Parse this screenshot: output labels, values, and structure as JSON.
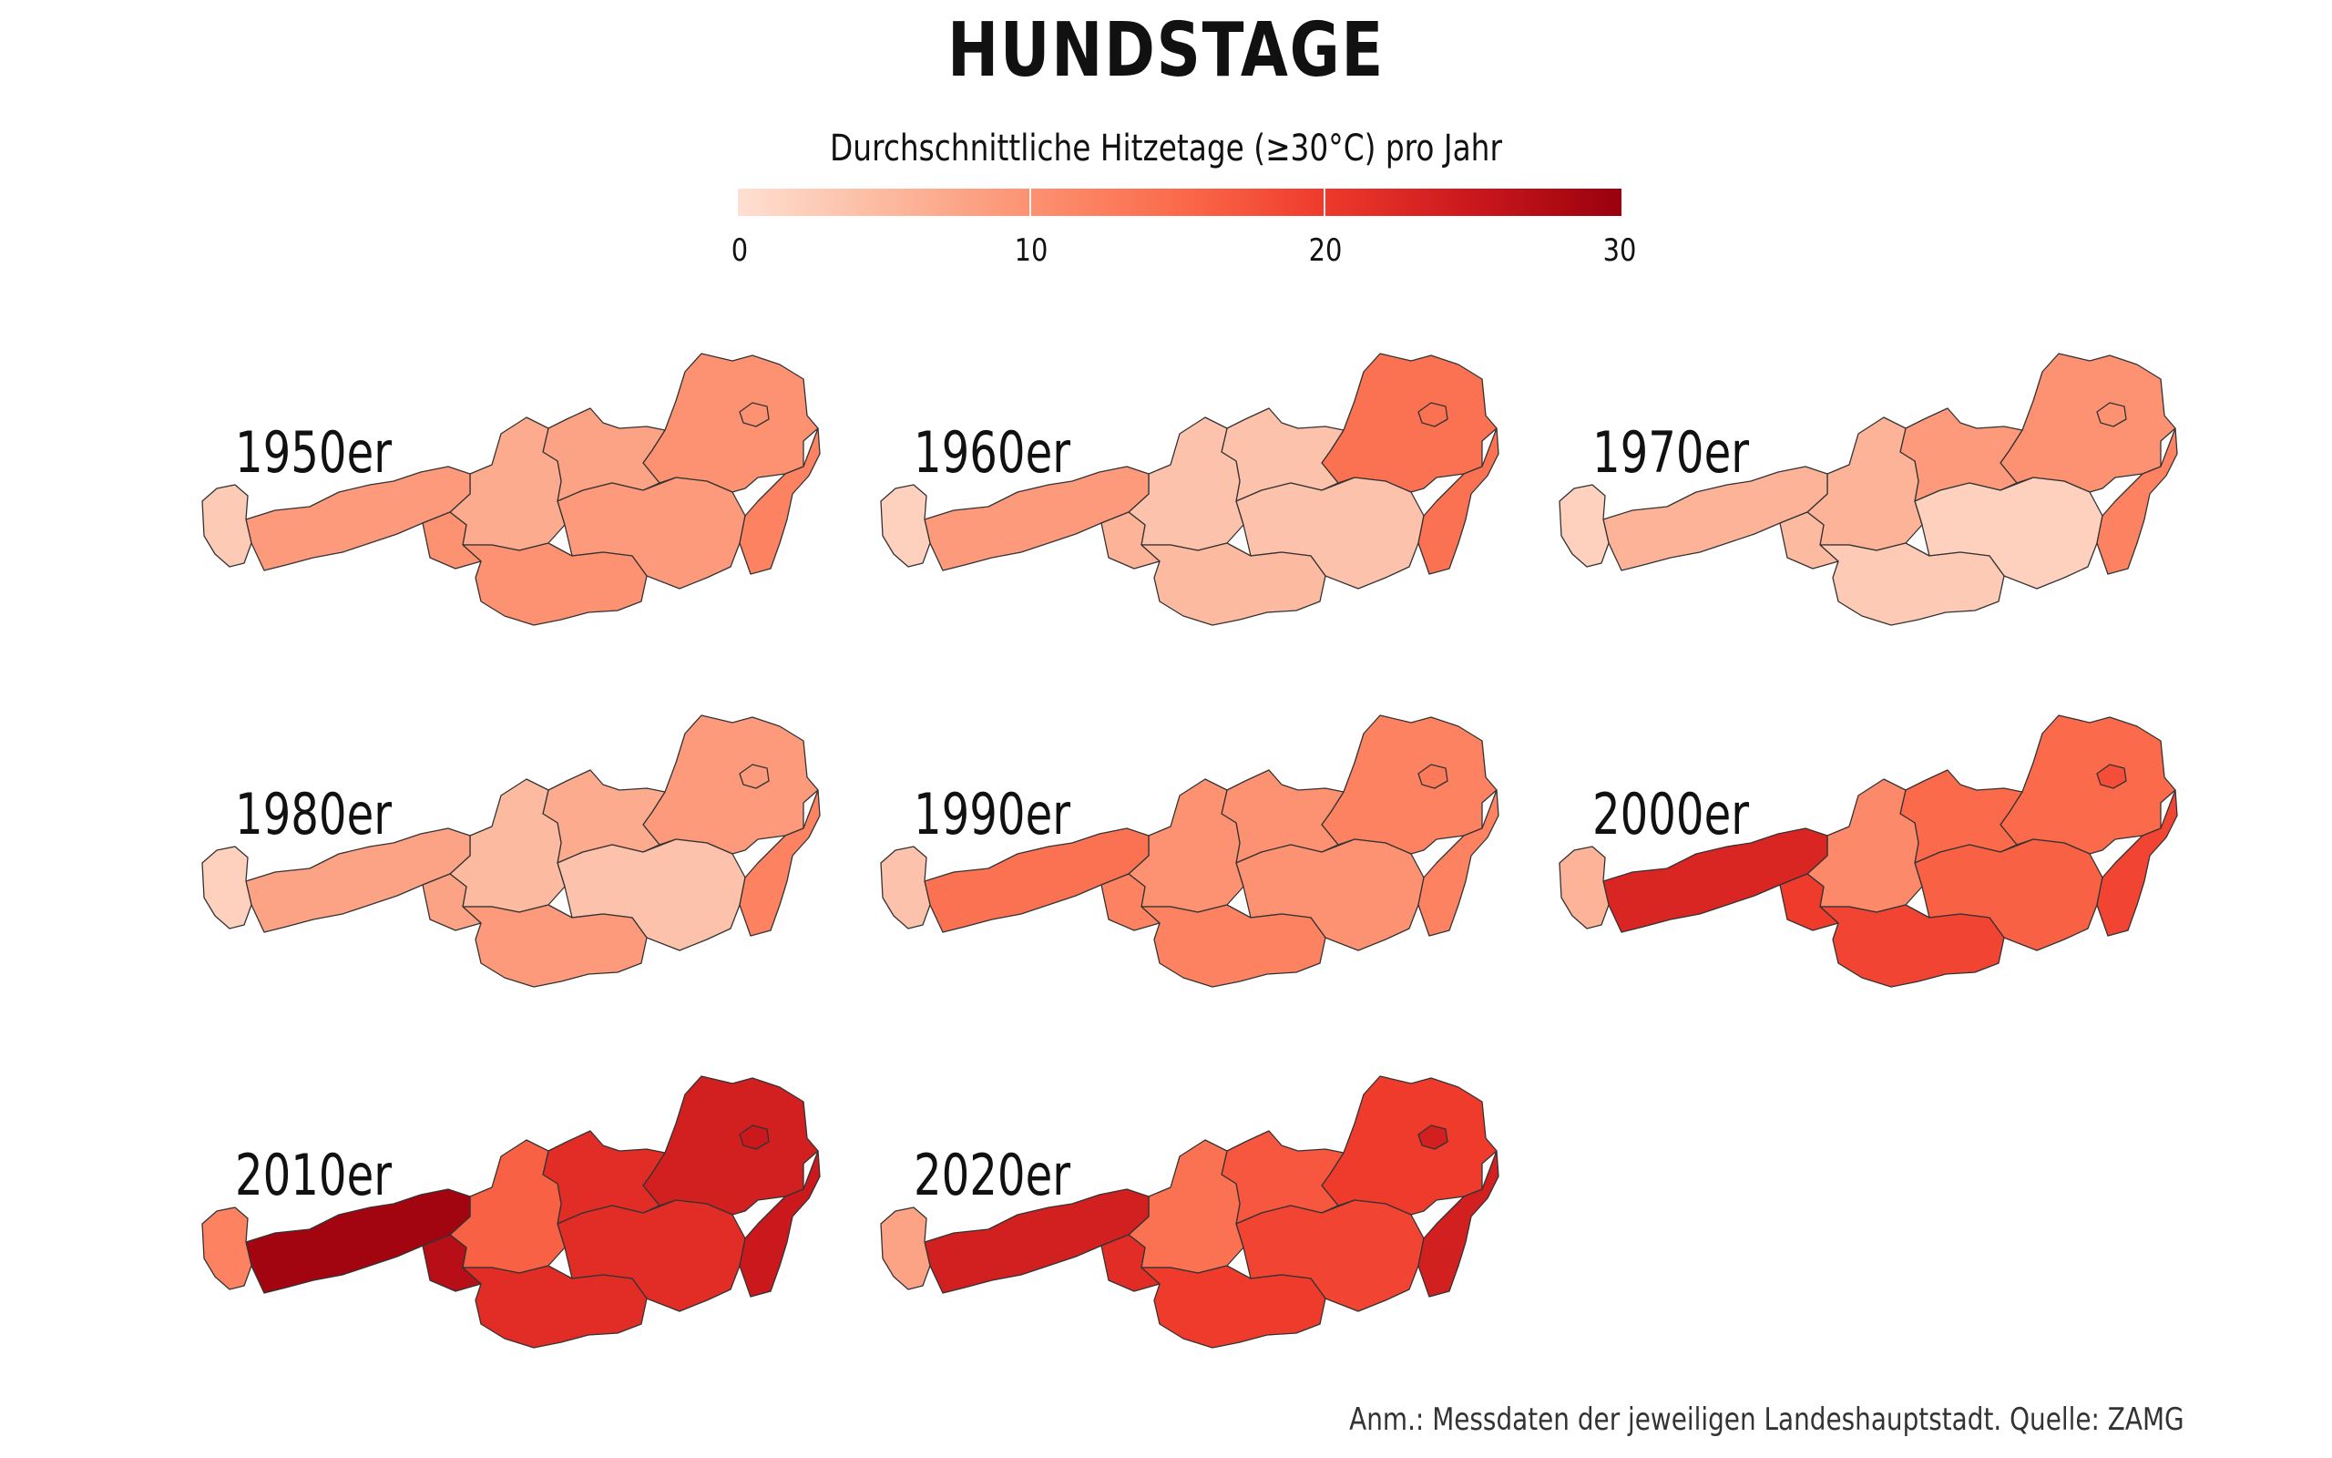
{
  "title": "HUNDSTAGE",
  "legend": {
    "title": "Durchschnittliche Hitzetage (≥30°C) pro Jahr",
    "ticks": [
      "0",
      "10",
      "20",
      "30"
    ],
    "min": 0,
    "max": 30,
    "colors": [
      "#fee0d2",
      "#fcbba1",
      "#fc9272",
      "#fb6a4a",
      "#ef3b2c",
      "#cb181d",
      "#99000d"
    ]
  },
  "footnote": "Anm.: Messdaten der jeweiligen Landeshauptstadt. Quelle: ZAMG",
  "regions": [
    "Vorarlberg",
    "Tirol",
    "Osttirol",
    "Salzburg",
    "Kärnten",
    "Steiermark",
    "Oberösterreich",
    "Niederösterreich",
    "Wien",
    "Burgenland"
  ],
  "panels": [
    {
      "label": "1950er",
      "values": {
        "Vorarlberg": 3,
        "Tirol": 9,
        "Osttirol": 10,
        "Salzburg": 7,
        "Kärnten": 10,
        "Steiermark": 9,
        "Oberösterreich": 8,
        "Niederösterreich": 10,
        "Wien": 10,
        "Burgenland": 12
      }
    },
    {
      "label": "1960er",
      "values": {
        "Vorarlberg": 2,
        "Tirol": 9,
        "Osttirol": 6,
        "Salzburg": 4,
        "Kärnten": 5,
        "Steiermark": 4,
        "Oberösterreich": 4,
        "Niederösterreich": 14,
        "Wien": 14,
        "Burgenland": 14
      }
    },
    {
      "label": "1970er",
      "values": {
        "Vorarlberg": 2,
        "Tirol": 6,
        "Osttirol": 5,
        "Salzburg": 6,
        "Kärnten": 3,
        "Steiermark": 2,
        "Oberösterreich": 9,
        "Niederösterreich": 10,
        "Wien": 10,
        "Burgenland": 12
      }
    },
    {
      "label": "1980er",
      "values": {
        "Vorarlberg": 2,
        "Tirol": 8,
        "Osttirol": 8,
        "Salzburg": 5,
        "Kärnten": 9,
        "Steiermark": 4,
        "Oberösterreich": 7,
        "Niederösterreich": 9,
        "Wien": 9,
        "Burgenland": 12
      }
    },
    {
      "label": "1990er",
      "values": {
        "Vorarlberg": 4,
        "Tirol": 14,
        "Osttirol": 12,
        "Salzburg": 10,
        "Kärnten": 12,
        "Steiermark": 10,
        "Oberösterreich": 10,
        "Niederösterreich": 12,
        "Wien": 13,
        "Burgenland": 12
      }
    },
    {
      "label": "2000er",
      "values": {
        "Vorarlberg": 6,
        "Tirol": 23,
        "Osttirol": 20,
        "Salzburg": 11,
        "Kärnten": 19,
        "Steiermark": 16,
        "Oberösterreich": 15,
        "Niederösterreich": 15,
        "Wien": 18,
        "Burgenland": 19
      }
    },
    {
      "label": "2010er",
      "values": {
        "Vorarlberg": 12,
        "Tirol": 29,
        "Osttirol": 27,
        "Salzburg": 16,
        "Kärnten": 22,
        "Steiermark": 22,
        "Oberösterreich": 22,
        "Niederösterreich": 24,
        "Wien": 25,
        "Burgenland": 25
      }
    },
    {
      "label": "2020er",
      "values": {
        "Vorarlberg": 8,
        "Tirol": 24,
        "Osttirol": 22,
        "Salzburg": 14,
        "Kärnten": 20,
        "Steiermark": 19,
        "Oberösterreich": 17,
        "Niederösterreich": 20,
        "Wien": 24,
        "Burgenland": 24
      }
    }
  ]
}
